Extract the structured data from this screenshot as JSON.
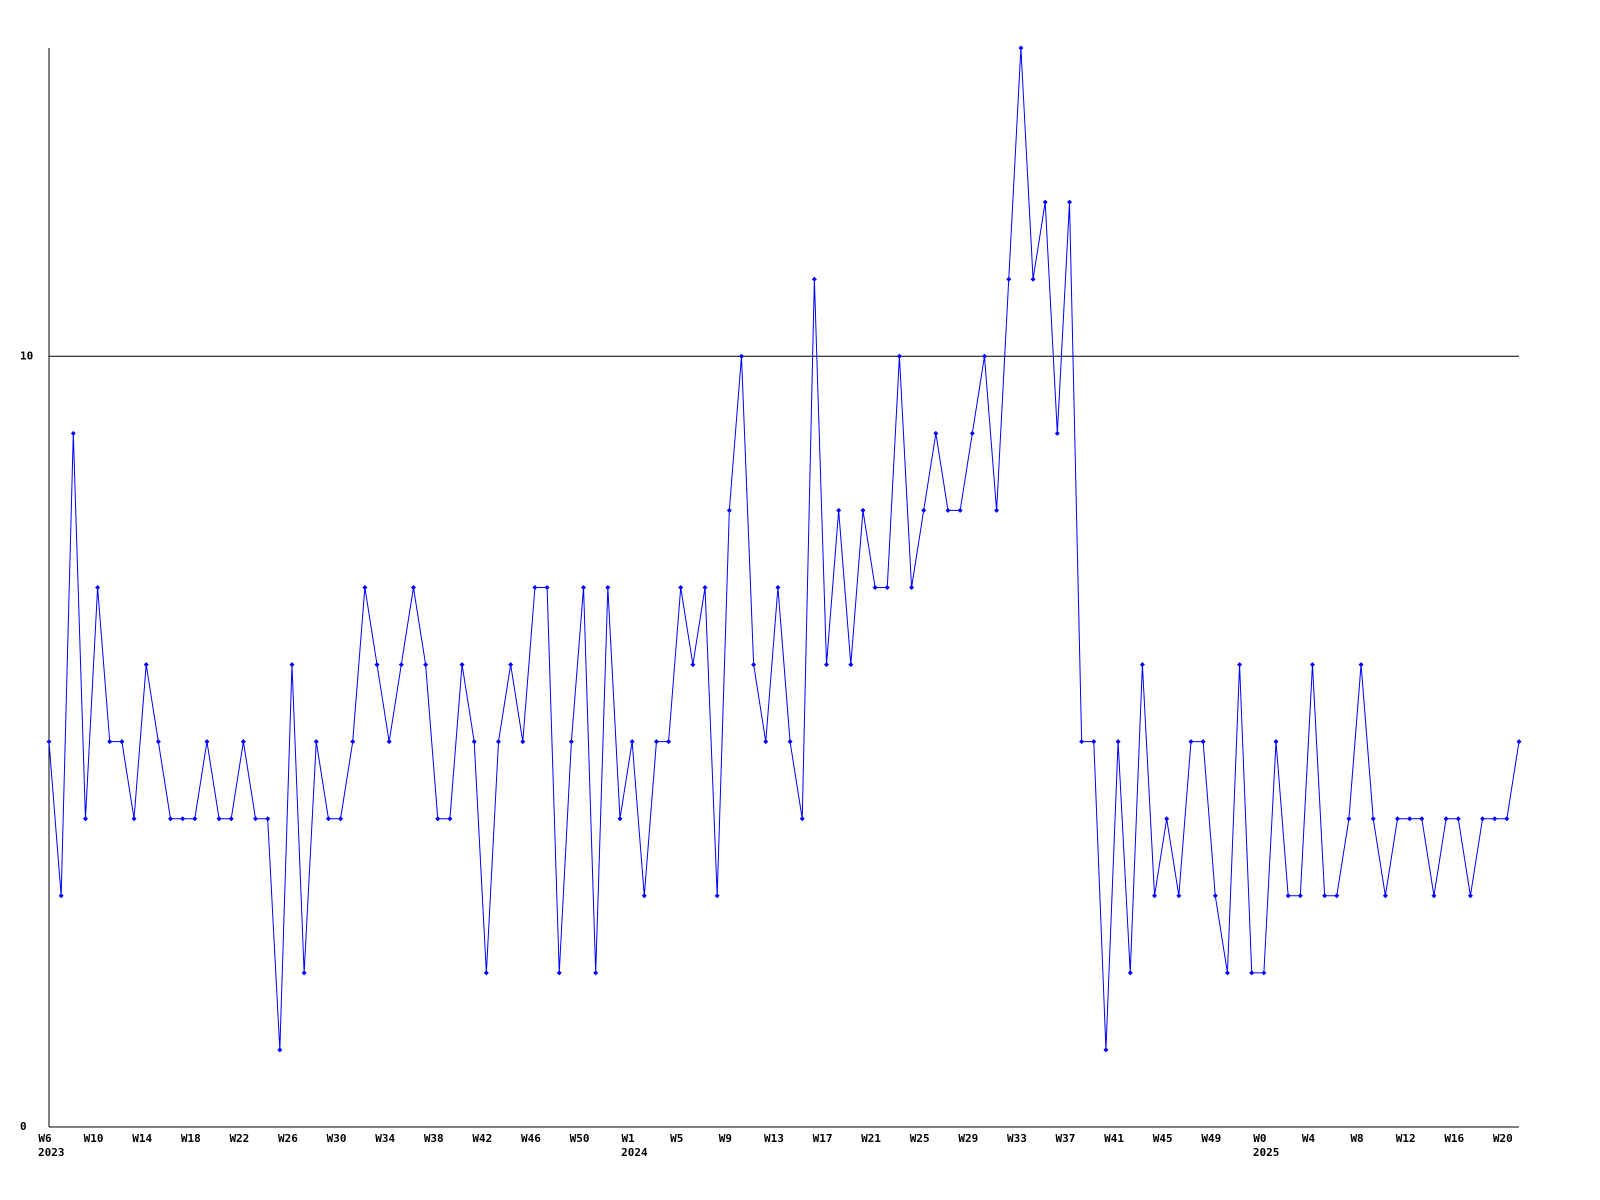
{
  "chart_data": {
    "type": "line",
    "color": "#0000ff",
    "categories": [
      "W6",
      null,
      null,
      null,
      "W10",
      null,
      null,
      null,
      "W14",
      null,
      null,
      null,
      "W18",
      null,
      null,
      null,
      "W22",
      null,
      null,
      null,
      "W26",
      null,
      null,
      null,
      "W30",
      null,
      null,
      null,
      "W34",
      null,
      null,
      null,
      "W38",
      null,
      null,
      null,
      "W42",
      null,
      null,
      null,
      "W46",
      null,
      null,
      null,
      "W50",
      null,
      null,
      null,
      "W1",
      null,
      null,
      null,
      "W5",
      null,
      null,
      null,
      "W9",
      null,
      null,
      null,
      "W13",
      null,
      null,
      null,
      "W17",
      null,
      null,
      null,
      "W21",
      null,
      null,
      null,
      "W25",
      null,
      null,
      null,
      "W29",
      null,
      null,
      null,
      "W33",
      null,
      null,
      null,
      "W37",
      null,
      null,
      null,
      "W41",
      null,
      null,
      null,
      "W45",
      null,
      null,
      null,
      "W49",
      null,
      null,
      null,
      "W0",
      null,
      null,
      null,
      "W4",
      null,
      null,
      null,
      "W8",
      null,
      null,
      null,
      "W12",
      null,
      null,
      null,
      "W16",
      null,
      null,
      null,
      "W20",
      null
    ],
    "years": [
      "2023",
      null,
      null,
      null,
      null,
      null,
      null,
      null,
      null,
      null,
      null,
      null,
      null,
      null,
      null,
      null,
      null,
      null,
      null,
      null,
      null,
      null,
      null,
      null,
      null,
      null,
      null,
      null,
      null,
      null,
      null,
      null,
      null,
      null,
      null,
      null,
      null,
      null,
      null,
      null,
      null,
      null,
      null,
      null,
      null,
      null,
      null,
      null,
      "2024",
      null,
      null,
      null,
      null,
      null,
      null,
      null,
      null,
      null,
      null,
      null,
      null,
      null,
      null,
      null,
      null,
      null,
      null,
      null,
      null,
      null,
      null,
      null,
      null,
      null,
      null,
      null,
      null,
      null,
      null,
      null,
      null,
      null,
      null,
      null,
      null,
      null,
      null,
      null,
      null,
      null,
      null,
      null,
      null,
      null,
      null,
      null,
      null,
      null,
      null,
      null,
      "2025",
      null,
      null,
      null,
      null,
      null,
      null,
      null,
      null,
      null,
      null,
      null,
      null,
      null,
      null,
      null,
      null,
      null,
      null,
      null,
      null
    ],
    "values": [
      5,
      3,
      9,
      4,
      7,
      5,
      5,
      4,
      6,
      5,
      4,
      4,
      4,
      5,
      4,
      4,
      5,
      4,
      4,
      1,
      6,
      2,
      5,
      4,
      4,
      5,
      7,
      6,
      5,
      6,
      7,
      6,
      4,
      4,
      6,
      5,
      2,
      5,
      6,
      5,
      7,
      7,
      2,
      5,
      7,
      2,
      7,
      4,
      5,
      3,
      5,
      5,
      7,
      6,
      7,
      3,
      8,
      10,
      6,
      5,
      7,
      5,
      4,
      11,
      6,
      8,
      6,
      8,
      7,
      7,
      10,
      7,
      8,
      9,
      8,
      8,
      9,
      10,
      8,
      11,
      14,
      11,
      12,
      9,
      12,
      5,
      5,
      1,
      5,
      2,
      6,
      3,
      4,
      3,
      5,
      5,
      3,
      2,
      6,
      2,
      2,
      5,
      3,
      3,
      6,
      3,
      3,
      4,
      6,
      4,
      3,
      4,
      4,
      4,
      3,
      4,
      4,
      3,
      4,
      4,
      4,
      5
    ],
    "ylim": [
      0,
      14
    ],
    "yticks": [
      0,
      10
    ],
    "grid": true
  }
}
